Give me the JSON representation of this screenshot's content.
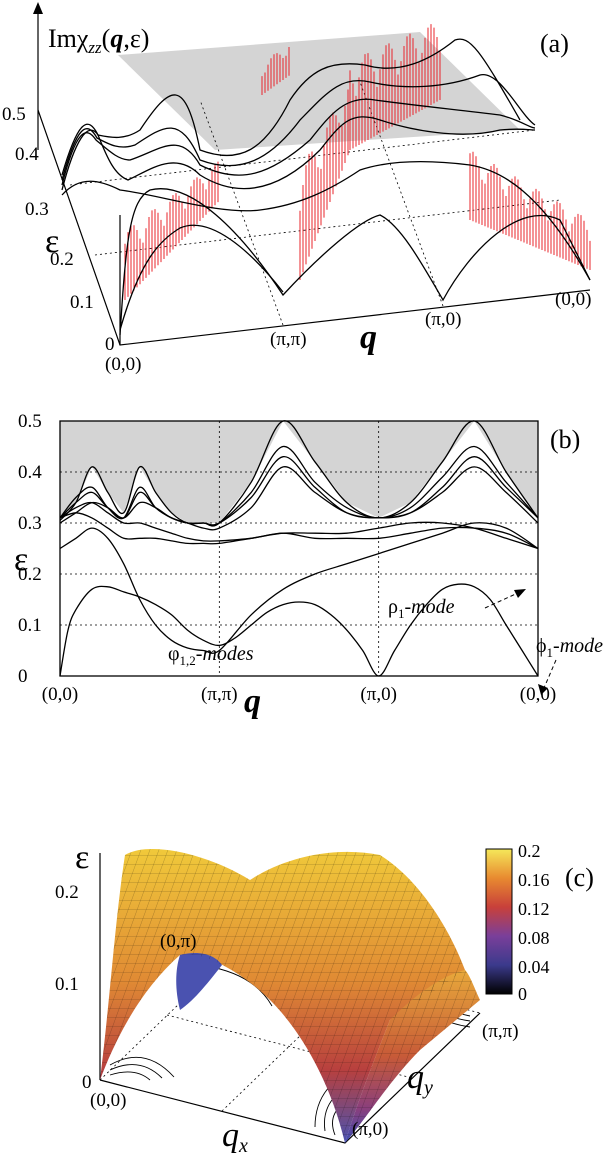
{
  "chart_data": [
    {
      "panel": "(a)",
      "type": "line",
      "title": "Imχzz(q,ε)",
      "xlabel": "q",
      "ylabel": "ε",
      "ylim": [
        0,
        0.5
      ],
      "yticks": [
        "0",
        "0.1",
        "0.2",
        "0.3",
        "0.4",
        "0.5"
      ],
      "xticks": [
        "(0,0)",
        "(π,π)",
        "(π,0)",
        "(0,0)"
      ],
      "continuum_edge": {
        "x": [
          0,
          0.05,
          0.1,
          0.15,
          0.2,
          0.25,
          0.3,
          0.35,
          0.4,
          0.45,
          0.5,
          0.55,
          0.6,
          0.65,
          0.7,
          0.75,
          0.8,
          0.85,
          0.9,
          0.95,
          1.0
        ],
        "y": [
          0.31,
          0.36,
          0.41,
          0.34,
          0.41,
          0.34,
          0.31,
          0.38,
          0.47,
          0.5,
          0.44,
          0.34,
          0.31,
          0.38,
          0.48,
          0.5,
          0.42,
          0.34,
          0.31,
          0.31,
          0.31
        ]
      }
    },
    {
      "panel": "(b)",
      "type": "line",
      "xlabel": "q",
      "ylabel": "ε",
      "ylim": [
        0,
        0.5
      ],
      "yticks": [
        "0",
        "0.1",
        "0.2",
        "0.3",
        "0.4",
        "0.5"
      ],
      "xticks": [
        "(0,0)",
        "(π,π)",
        "(π,0)",
        "(0,0)"
      ],
      "x_positions": [
        0,
        1,
        2,
        3
      ],
      "continuum_edge": {
        "x": [
          0,
          0.1,
          0.2,
          0.3,
          0.4,
          0.5,
          0.6,
          0.7,
          0.8,
          0.9,
          1.0,
          1.2,
          1.4,
          1.6,
          1.8,
          2.0,
          2.2,
          2.4,
          2.6,
          2.8,
          3.0
        ],
        "y": [
          0.305,
          0.34,
          0.41,
          0.36,
          0.32,
          0.41,
          0.36,
          0.32,
          0.3,
          0.3,
          0.3,
          0.38,
          0.5,
          0.42,
          0.34,
          0.31,
          0.34,
          0.42,
          0.5,
          0.4,
          0.31
        ]
      },
      "series": [
        {
          "x": [
            0,
            0.1,
            0.2,
            0.3,
            0.4,
            0.5,
            0.6,
            0.7,
            0.8,
            0.9,
            1.0,
            1.2,
            1.4,
            1.6,
            1.8,
            2.0,
            2.2,
            2.4,
            2.6,
            2.8,
            3.0
          ],
          "values": [
            0.31,
            0.35,
            0.37,
            0.33,
            0.31,
            0.37,
            0.33,
            0.31,
            0.3,
            0.3,
            0.3,
            0.36,
            0.45,
            0.38,
            0.33,
            0.31,
            0.33,
            0.39,
            0.45,
            0.38,
            0.31
          ]
        },
        {
          "x": [
            0,
            0.1,
            0.2,
            0.3,
            0.4,
            0.5,
            0.6,
            0.7,
            0.8,
            0.9,
            1.0,
            1.2,
            1.4,
            1.6,
            1.8,
            2.0,
            2.2,
            2.4,
            2.6,
            2.8,
            3.0
          ],
          "values": [
            0.31,
            0.34,
            0.36,
            0.33,
            0.31,
            0.36,
            0.33,
            0.31,
            0.3,
            0.3,
            0.3,
            0.35,
            0.43,
            0.37,
            0.32,
            0.31,
            0.32,
            0.37,
            0.43,
            0.37,
            0.31
          ]
        },
        {
          "x": [
            0,
            0.1,
            0.2,
            0.3,
            0.4,
            0.5,
            0.6,
            0.7,
            0.8,
            0.9,
            1.0,
            1.2,
            1.4,
            1.6,
            1.8,
            2.0,
            2.2,
            2.4,
            2.6,
            2.8,
            3.0
          ],
          "values": [
            0.3,
            0.32,
            0.34,
            0.33,
            0.31,
            0.34,
            0.33,
            0.31,
            0.3,
            0.29,
            0.29,
            0.33,
            0.41,
            0.36,
            0.32,
            0.31,
            0.32,
            0.36,
            0.41,
            0.36,
            0.3
          ]
        },
        {
          "x": [
            0,
            0.1,
            0.2,
            0.3,
            0.4,
            0.5,
            0.6,
            0.7,
            0.8,
            0.9,
            1.0,
            1.2,
            1.4,
            1.6,
            1.8,
            2.0,
            2.2,
            2.4,
            2.6,
            2.8,
            3.0
          ],
          "values": [
            0.31,
            0.33,
            0.34,
            0.32,
            0.3,
            0.3,
            0.29,
            0.28,
            0.27,
            0.265,
            0.265,
            0.27,
            0.28,
            0.27,
            0.27,
            0.27,
            0.28,
            0.29,
            0.29,
            0.28,
            0.25
          ]
        },
        {
          "x": [
            0,
            0.1,
            0.2,
            0.3,
            0.4,
            0.5,
            0.6,
            0.7,
            0.8,
            0.9,
            1.0,
            1.2,
            1.4,
            1.6,
            1.8,
            2.0,
            2.2,
            2.4,
            2.6,
            2.8,
            3.0
          ],
          "values": [
            0.25,
            0.27,
            0.29,
            0.27,
            0.22,
            0.15,
            0.1,
            0.07,
            0.055,
            0.05,
            0.05,
            0.12,
            0.17,
            0.2,
            0.22,
            0.24,
            0.26,
            0.28,
            0.3,
            0.29,
            0.25
          ]
        },
        {
          "x": [
            0,
            0.1,
            0.2,
            0.3,
            0.4,
            0.5,
            0.6,
            0.7,
            0.8,
            0.9,
            1.0,
            1.2,
            1.4,
            1.6,
            1.8,
            2.0,
            2.2,
            2.4,
            2.6,
            2.8,
            3.0
          ],
          "values": [
            0.31,
            0.32,
            0.31,
            0.29,
            0.27,
            0.27,
            0.27,
            0.265,
            0.26,
            0.26,
            0.26,
            0.27,
            0.28,
            0.28,
            0.28,
            0.29,
            0.3,
            0.3,
            0.29,
            0.27,
            0.25
          ]
        },
        {
          "x": [
            0,
            0.05,
            0.1,
            0.2,
            0.3,
            0.4,
            0.5,
            0.6,
            0.7,
            0.8,
            0.9,
            1.0,
            1.1,
            1.2,
            1.3,
            1.4,
            1.5,
            1.6,
            1.7,
            1.8,
            1.9,
            2.0,
            2.1,
            2.2,
            2.3,
            2.4,
            2.5,
            2.6,
            2.7,
            2.8,
            2.9,
            3.0
          ],
          "values": [
            0,
            0.09,
            0.13,
            0.17,
            0.175,
            0.165,
            0.155,
            0.14,
            0.12,
            0.09,
            0.07,
            0.06,
            0.075,
            0.1,
            0.125,
            0.14,
            0.145,
            0.14,
            0.12,
            0.09,
            0.05,
            0,
            0.05,
            0.1,
            0.14,
            0.17,
            0.18,
            0.175,
            0.15,
            0.1,
            0.05,
            0
          ]
        }
      ],
      "annotations": [
        "ρ1-mode",
        "ϕ1-mode",
        "φ1,2-modes"
      ]
    },
    {
      "panel": "(c)",
      "type": "heatmap",
      "xlabel": "qx",
      "ylabel": "qy",
      "zlabel": "ε",
      "zticks": [
        "0",
        "0.1",
        "0.2"
      ],
      "corner_labels": [
        "(0,0)",
        "(0,π)",
        "(π,π)",
        "(π,0)"
      ],
      "colorbar": {
        "ticks": [
          "0.2",
          "0.16",
          "0.12",
          "0.08",
          "0.04",
          "0"
        ],
        "range": [
          0,
          0.2
        ]
      }
    }
  ],
  "labels": {
    "a": {
      "panel": "(a)",
      "title_prefix": "Imχ",
      "title_sub": "zz",
      "title_q": "q",
      "title_suffix": ",ε)",
      "title_open": "(",
      "eps": "ε",
      "q": "q",
      "y0": "0",
      "y1": "0.1",
      "y2": "0.2",
      "y3": "0.3",
      "y4": "0.4",
      "y5": "0.5",
      "x0": "(0,0)",
      "x1": "(π,π)",
      "x2": "(π,0)",
      "x3": "(0,0)"
    },
    "b": {
      "panel": "(b)",
      "eps": "ε",
      "q": "q",
      "y0": "0",
      "y1": "0.1",
      "y2": "0.2",
      "y3": "0.3",
      "y4": "0.4",
      "y5": "0.5",
      "x0": "(0,0)",
      "x1": "(π,π)",
      "x2": "(π,0)",
      "x3": "(0,0)",
      "rho_main": "ρ",
      "rho_sub": "1",
      "rho_mode": "-mode",
      "phi_main": "ϕ",
      "phi_sub": "1",
      "phi_mode": "-mode",
      "varphi_main": "φ",
      "varphi_sub": "1,2",
      "varphi_mode": "-modes"
    },
    "c": {
      "panel": "(c)",
      "eps": "ε",
      "qx": "q",
      "qx_sub": "x",
      "qy": "q",
      "qy_sub": "y",
      "z0": "0",
      "z1": "0.1",
      "z2": "0.2",
      "c00": "(0,0)",
      "c0p": "(0,π)",
      "cpp": "(π,π)",
      "cp0": "(π,0)",
      "cb0": "0.2",
      "cb1": "0.16",
      "cb2": "0.12",
      "cb3": "0.08",
      "cb4": "0.04",
      "cb5": "0"
    }
  },
  "colors": {
    "continuum": "#d4d4d4",
    "spectral": "#e8242b",
    "surface_high": "#f0c93a",
    "surface_mid": "#c8503a",
    "surface_low": "#5a55b0"
  }
}
